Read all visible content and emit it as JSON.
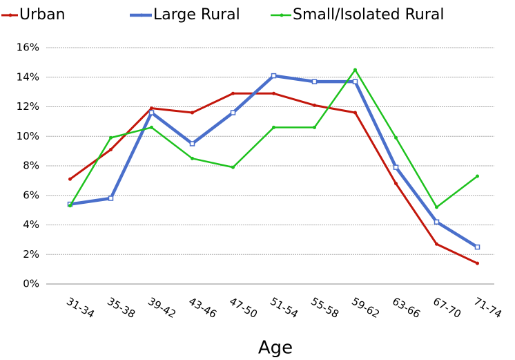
{
  "chart_data": {
    "type": "line",
    "x_label": "Age",
    "categories": [
      "31-34",
      "35-38",
      "39-42",
      "43-46",
      "47-50",
      "51-54",
      "55-58",
      "59-62",
      "63-66",
      "67-70",
      "71-74"
    ],
    "series": [
      {
        "name": "Urban",
        "color": "#c3170c",
        "values": [
          7.1,
          9.1,
          11.9,
          11.6,
          12.9,
          12.9,
          12.1,
          11.6,
          6.8,
          2.7,
          1.4
        ]
      },
      {
        "name": "Large Rural",
        "color": "#4a6fcb",
        "values": [
          5.4,
          5.8,
          11.6,
          9.5,
          11.6,
          14.1,
          13.7,
          13.7,
          7.9,
          4.2,
          2.5
        ]
      },
      {
        "name": "Small/Isolated Rural",
        "color": "#1ec21e",
        "values": [
          5.3,
          9.9,
          10.6,
          8.5,
          7.9,
          10.6,
          10.6,
          14.5,
          9.9,
          5.2,
          7.3
        ]
      }
    ],
    "ylim": [
      0,
      16
    ],
    "yticks": [
      {
        "value": 0,
        "label": "0%"
      },
      {
        "value": 2,
        "label": "2%"
      },
      {
        "value": 4,
        "label": "4%"
      },
      {
        "value": 6,
        "label": "6%"
      },
      {
        "value": 8,
        "label": "8%"
      },
      {
        "value": 10,
        "label": "10%"
      },
      {
        "value": 12,
        "label": "12%"
      },
      {
        "value": 14,
        "label": "14%"
      },
      {
        "value": 16,
        "label": "16%"
      }
    ],
    "grid": true,
    "legend": "top"
  }
}
